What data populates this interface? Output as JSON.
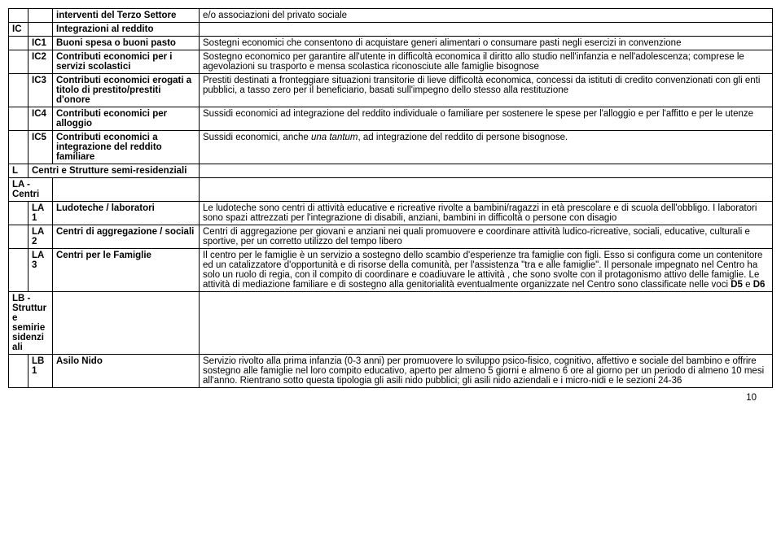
{
  "rows": [
    {
      "a": "",
      "b": "",
      "c": "interventi del Terzo Settore",
      "c_bold": true,
      "d": "e/o associazioni del privato sociale"
    },
    {
      "a": "IC",
      "a_bold": true,
      "b": "",
      "c": "Integrazioni al reddito",
      "c_bold": true,
      "d": ""
    },
    {
      "a": "",
      "b": "IC1",
      "b_bold": true,
      "c": "Buoni spesa o buoni pasto",
      "c_bold": true,
      "d": "Sostegni economici che consentono di acquistare generi alimentari o consumare pasti negli esercizi in convenzione"
    },
    {
      "a": "",
      "b": "IC2",
      "b_bold": true,
      "c": "Contributi economici per i servizi scolastici",
      "c_bold": true,
      "d": "Sostegno economico per garantire all'utente in difficoltà economica il diritto allo studio nell'infanzia e nell'adolescenza; comprese le agevolazioni su trasporto e mensa scolastica riconosciute alle famiglie bisognose"
    },
    {
      "a": "",
      "b": "IC3",
      "b_bold": true,
      "c": "Contributi economici erogati a titolo di prestito/prestiti d'onore",
      "c_bold": true,
      "d": "Prestiti destinati a fronteggiare situazioni transitorie di lieve difficoltà economica, concessi da istituti di credito convenzionati con gli enti pubblici, a tasso zero per il beneficiario, basati sull'impegno dello stesso alla restituzione"
    },
    {
      "a": "",
      "b": "IC4",
      "b_bold": true,
      "c": "Contributi economici  per alloggio",
      "c_bold": true,
      "d": "Sussidi economici ad integrazione del reddito individuale o familiare per sostenere le spese per l'alloggio e per l'affitto e per le utenze"
    },
    {
      "a": "",
      "b": "IC5",
      "b_bold": true,
      "c": "Contributi economici a integrazione del reddito familiare",
      "c_bold": true,
      "d_html": "Sussidi economici, anche <span class='italic'>una tantum</span>, ad integrazione del reddito di persone bisognose."
    },
    {
      "a": "L",
      "a_bold": true,
      "span": true,
      "c": "Centri e Strutture semi-residenziali",
      "c_bold": true
    },
    {
      "a_span": true,
      "a": "LA -Centri",
      "a_bold": true
    },
    {
      "a": "",
      "b": "LA1",
      "b_bold": true,
      "c": "Ludoteche / laboratori",
      "c_bold": true,
      "d": "Le ludoteche sono centri di attività educative e ricreative rivolte a bambini/ragazzi in età prescolare e di scuola dell'obbligo. I laboratori sono spazi attrezzati per l'integrazione  di disabili, anziani, bambini in difficoltà o persone con disagio"
    },
    {
      "a": "",
      "b": "LA2",
      "b_bold": true,
      "c": "Centri di aggregazione / sociali",
      "c_bold": true,
      "d": "Centri di aggregazione per giovani e anziani nei quali promuovere e coordinare attività ludico-ricreative, sociali, educative, culturali e sportive, per un corretto utilizzo del tempo libero"
    },
    {
      "a": "",
      "b": "LA3",
      "b_bold": true,
      "c": "Centri per le Famiglie",
      "c_bold": true,
      "d_html": "Il centro per le famiglie è un servizio a sostegno dello scambio d'esperienze  tra famiglie con figli. Esso si configura  come un contenitore  ed  un catalizzatore d'opportunità e di risorse della comunità, per l'assistenza  \"tra e alle famiglie\". Il personale impegnato nel Centro ha solo un ruolo di regia, con il compito di coordinare e coadiuvare le attività , che sono svolte con il protagonismo attivo delle famiglie. Le attività  di mediazione familiare e di sostegno alla genitorialità eventualmente organizzate nel Centro sono classificate nelle voci <span class='bold'>D5</span> e <span class='bold'>D6</span>"
    },
    {
      "a_span": true,
      "a": "LB - Strutture semiriesidenziali",
      "a_bold": true
    },
    {
      "a": "",
      "b": "LB1",
      "b_bold": true,
      "c": "Asilo Nido",
      "c_bold": true,
      "d": "Servizio rivolto alla prima infanzia (0-3 anni) per promuovere lo sviluppo psico-fisico, cognitivo, affettivo e sociale del bambino e offrire sostegno alle famiglie nel loro compito educativo, aperto per almeno 5 giorni e almeno 6 ore al giorno per un periodo di almeno 10 mesi all'anno. Rientrano sotto questa tipologia gli asili nido pubblici; gli asili nido aziendali e i micro-nidi e le sezioni 24-36"
    }
  ],
  "page_number": "10"
}
